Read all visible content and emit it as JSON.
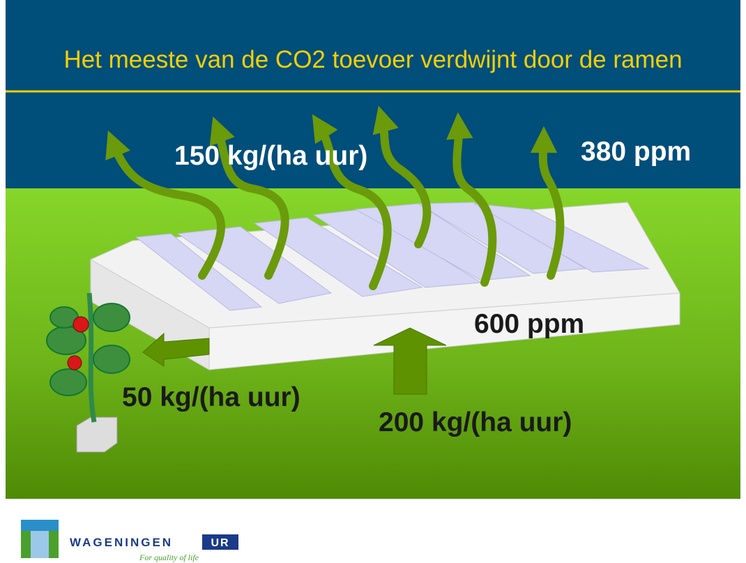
{
  "header": {
    "title": "Het meeste van de CO2 toevoer verdwijnt door de ramen"
  },
  "labels": {
    "outflow": "150 kg/(ha uur)",
    "outside": "380 ppm",
    "inside": "600 ppm",
    "to_crop": "50 kg/(ha uur)",
    "supply": "200 kg/(ha uur)"
  },
  "logo": {
    "name": "WAGENINGEN",
    "badge": "UR",
    "tagline": "For quality of life"
  }
}
